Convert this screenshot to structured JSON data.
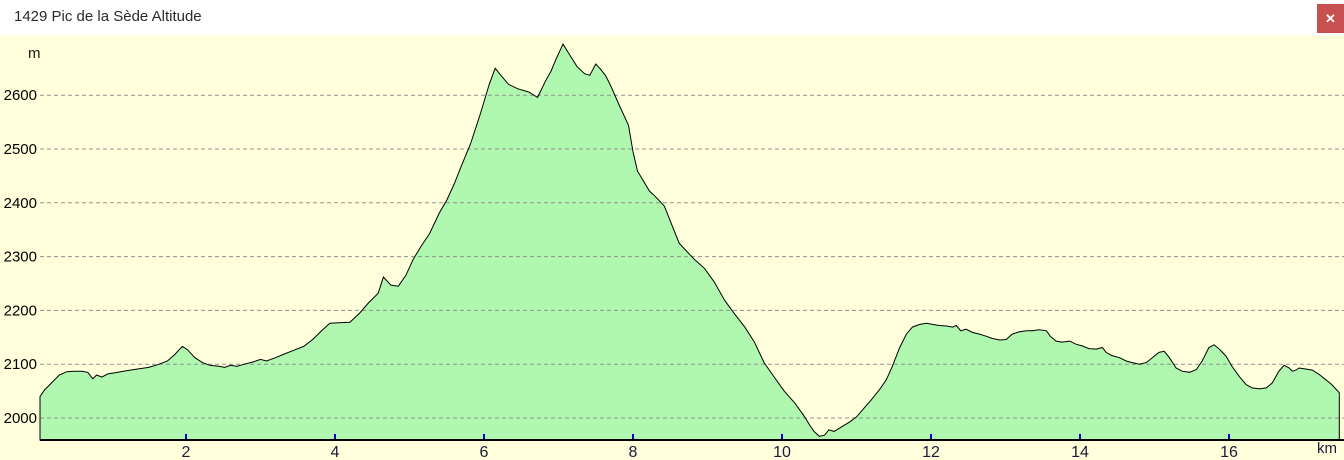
{
  "window": {
    "title": "1429 Pic de la Sède Altitude",
    "close_icon": "✕"
  },
  "colors": {
    "chart_bg": "#ffffdb",
    "area_fill": "#b0f8b0",
    "profile_line": "#000000",
    "grid_line": "#909090",
    "axis_line": "#000000",
    "tick_mark": "#0000cc",
    "x_tick_label": "#1a1a3c",
    "y_tick_label": "#000000",
    "close_bg": "#c75050",
    "close_fg": "#ffffff"
  },
  "chart_data": {
    "type": "area",
    "title": "1429 Pic de la Sède Altitude",
    "xlabel": "km",
    "ylabel": "m",
    "x_ticks": [
      2,
      4,
      6,
      8,
      10,
      12,
      14,
      16
    ],
    "y_ticks": [
      2000,
      2100,
      2200,
      2300,
      2400,
      2500,
      2600
    ],
    "xlim": [
      0,
      17.5
    ],
    "ylim": [
      1959,
      2700
    ],
    "grid": "horizontal-dashed",
    "legend": "none",
    "series": [
      {
        "name": "Altitude",
        "points": [
          [
            0.04,
            2040
          ],
          [
            0.1,
            2052
          ],
          [
            0.2,
            2066
          ],
          [
            0.3,
            2080
          ],
          [
            0.4,
            2086
          ],
          [
            0.5,
            2087
          ],
          [
            0.6,
            2087
          ],
          [
            0.68,
            2085
          ],
          [
            0.75,
            2073
          ],
          [
            0.8,
            2080
          ],
          [
            0.87,
            2076
          ],
          [
            0.95,
            2082
          ],
          [
            1.05,
            2084
          ],
          [
            1.2,
            2088
          ],
          [
            1.35,
            2091
          ],
          [
            1.5,
            2094
          ],
          [
            1.62,
            2099
          ],
          [
            1.75,
            2106
          ],
          [
            1.85,
            2118
          ],
          [
            1.95,
            2133
          ],
          [
            2.02,
            2127
          ],
          [
            2.12,
            2112
          ],
          [
            2.22,
            2103
          ],
          [
            2.32,
            2098
          ],
          [
            2.45,
            2096
          ],
          [
            2.52,
            2094
          ],
          [
            2.6,
            2098
          ],
          [
            2.68,
            2096
          ],
          [
            2.78,
            2100
          ],
          [
            2.9,
            2104
          ],
          [
            3.0,
            2109
          ],
          [
            3.08,
            2106
          ],
          [
            3.2,
            2112
          ],
          [
            3.32,
            2119
          ],
          [
            3.45,
            2126
          ],
          [
            3.58,
            2133
          ],
          [
            3.7,
            2146
          ],
          [
            3.82,
            2162
          ],
          [
            3.93,
            2176
          ],
          [
            4.05,
            2177
          ],
          [
            4.2,
            2178
          ],
          [
            4.33,
            2195
          ],
          [
            4.45,
            2214
          ],
          [
            4.58,
            2232
          ],
          [
            4.65,
            2262
          ],
          [
            4.75,
            2247
          ],
          [
            4.85,
            2245
          ],
          [
            4.95,
            2265
          ],
          [
            5.05,
            2295
          ],
          [
            5.15,
            2318
          ],
          [
            5.27,
            2343
          ],
          [
            5.4,
            2381
          ],
          [
            5.5,
            2405
          ],
          [
            5.6,
            2435
          ],
          [
            5.7,
            2470
          ],
          [
            5.82,
            2510
          ],
          [
            5.95,
            2565
          ],
          [
            6.07,
            2620
          ],
          [
            6.15,
            2650
          ],
          [
            6.22,
            2638
          ],
          [
            6.33,
            2620
          ],
          [
            6.45,
            2612
          ],
          [
            6.6,
            2606
          ],
          [
            6.72,
            2596
          ],
          [
            6.82,
            2625
          ],
          [
            6.9,
            2645
          ],
          [
            6.97,
            2668
          ],
          [
            7.06,
            2695
          ],
          [
            7.15,
            2675
          ],
          [
            7.25,
            2653
          ],
          [
            7.35,
            2640
          ],
          [
            7.42,
            2637
          ],
          [
            7.5,
            2658
          ],
          [
            7.56,
            2649
          ],
          [
            7.63,
            2637
          ],
          [
            7.7,
            2618
          ],
          [
            7.82,
            2580
          ],
          [
            7.94,
            2544
          ],
          [
            8.0,
            2495
          ],
          [
            8.06,
            2459
          ],
          [
            8.1,
            2450
          ],
          [
            8.22,
            2422
          ],
          [
            8.29,
            2413
          ],
          [
            8.36,
            2403
          ],
          [
            8.42,
            2394
          ],
          [
            8.5,
            2366
          ],
          [
            8.62,
            2325
          ],
          [
            8.7,
            2313
          ],
          [
            8.83,
            2294
          ],
          [
            8.96,
            2278
          ],
          [
            9.09,
            2253
          ],
          [
            9.23,
            2219
          ],
          [
            9.36,
            2194
          ],
          [
            9.5,
            2169
          ],
          [
            9.63,
            2141
          ],
          [
            9.76,
            2103
          ],
          [
            9.9,
            2075
          ],
          [
            10.03,
            2050
          ],
          [
            10.17,
            2028
          ],
          [
            10.3,
            2003
          ],
          [
            10.37,
            1987
          ],
          [
            10.43,
            1975
          ],
          [
            10.5,
            1966
          ],
          [
            10.57,
            1968
          ],
          [
            10.63,
            1978
          ],
          [
            10.7,
            1975
          ],
          [
            10.77,
            1981
          ],
          [
            10.9,
            1992
          ],
          [
            11.0,
            2002
          ],
          [
            11.1,
            2018
          ],
          [
            11.2,
            2034
          ],
          [
            11.31,
            2053
          ],
          [
            11.4,
            2071
          ],
          [
            11.48,
            2096
          ],
          [
            11.58,
            2131
          ],
          [
            11.67,
            2156
          ],
          [
            11.75,
            2169
          ],
          [
            11.85,
            2174
          ],
          [
            11.94,
            2176
          ],
          [
            12.02,
            2174
          ],
          [
            12.11,
            2172
          ],
          [
            12.21,
            2171
          ],
          [
            12.29,
            2169
          ],
          [
            12.34,
            2172
          ],
          [
            12.4,
            2162
          ],
          [
            12.47,
            2165
          ],
          [
            12.56,
            2159
          ],
          [
            12.65,
            2156
          ],
          [
            12.74,
            2152
          ],
          [
            12.82,
            2148
          ],
          [
            12.92,
            2145
          ],
          [
            13.01,
            2146
          ],
          [
            13.09,
            2156
          ],
          [
            13.18,
            2160
          ],
          [
            13.28,
            2162
          ],
          [
            13.36,
            2162
          ],
          [
            13.45,
            2164
          ],
          [
            13.55,
            2162
          ],
          [
            13.6,
            2152
          ],
          [
            13.68,
            2143
          ],
          [
            13.76,
            2141
          ],
          [
            13.86,
            2143
          ],
          [
            13.95,
            2137
          ],
          [
            14.03,
            2134
          ],
          [
            14.12,
            2129
          ],
          [
            14.22,
            2128
          ],
          [
            14.3,
            2131
          ],
          [
            14.35,
            2122
          ],
          [
            14.43,
            2116
          ],
          [
            14.53,
            2112
          ],
          [
            14.62,
            2106
          ],
          [
            14.7,
            2103
          ],
          [
            14.8,
            2100
          ],
          [
            14.89,
            2103
          ],
          [
            14.97,
            2112
          ],
          [
            15.06,
            2122
          ],
          [
            15.13,
            2124
          ],
          [
            15.2,
            2112
          ],
          [
            15.29,
            2093
          ],
          [
            15.37,
            2087
          ],
          [
            15.47,
            2085
          ],
          [
            15.56,
            2090
          ],
          [
            15.64,
            2106
          ],
          [
            15.73,
            2131
          ],
          [
            15.8,
            2136
          ],
          [
            15.87,
            2128
          ],
          [
            15.96,
            2115
          ],
          [
            16.04,
            2096
          ],
          [
            16.14,
            2077
          ],
          [
            16.23,
            2062
          ],
          [
            16.31,
            2056
          ],
          [
            16.41,
            2054
          ],
          [
            16.5,
            2056
          ],
          [
            16.58,
            2065
          ],
          [
            16.67,
            2087
          ],
          [
            16.74,
            2098
          ],
          [
            16.81,
            2093
          ],
          [
            16.85,
            2087
          ],
          [
            16.9,
            2089
          ],
          [
            16.94,
            2093
          ],
          [
            17.03,
            2091
          ],
          [
            17.12,
            2089
          ],
          [
            17.21,
            2081
          ],
          [
            17.3,
            2071
          ],
          [
            17.38,
            2062
          ],
          [
            17.44,
            2053
          ],
          [
            17.48,
            2047
          ]
        ]
      }
    ]
  }
}
